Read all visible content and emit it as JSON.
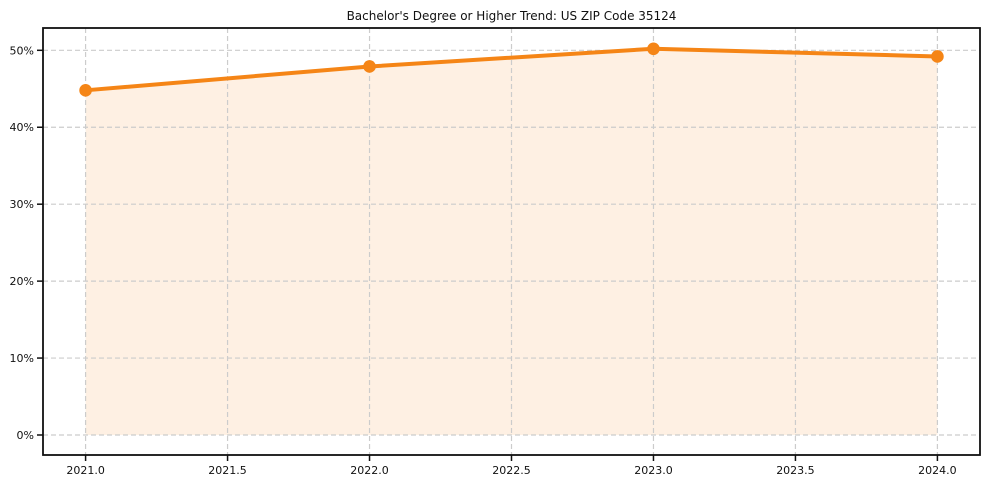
{
  "chart_data": {
    "type": "area",
    "title": "Bachelor's Degree or Higher Trend: US ZIP Code 35124",
    "x": [
      2021.0,
      2022.0,
      2023.0,
      2024.0
    ],
    "values": [
      44.8,
      47.9,
      50.2,
      49.2
    ],
    "xlabel": "",
    "ylabel": "",
    "xticks": [
      2021.0,
      2021.5,
      2022.0,
      2022.5,
      2023.0,
      2023.5,
      2024.0
    ],
    "xtick_labels": [
      "2021.0",
      "2021.5",
      "2022.0",
      "2022.5",
      "2023.0",
      "2023.5",
      "2024.0"
    ],
    "yticks": [
      0,
      10,
      20,
      30,
      40,
      50
    ],
    "ytick_labels": [
      "0%",
      "10%",
      "20%",
      "30%",
      "40%",
      "50%"
    ],
    "xlim": [
      2020.85,
      2024.15
    ],
    "ylim": [
      -2.6,
      52.9
    ],
    "grid": true,
    "grid_style": "dashed",
    "legend": "none",
    "colors": {
      "line": "#F58516",
      "marker": "#F58516",
      "fill": "rgba(245, 133, 22, 0.12)",
      "grid": "#cccccc",
      "spine": "#111111",
      "text": "#111111",
      "background": "#ffffff"
    }
  }
}
